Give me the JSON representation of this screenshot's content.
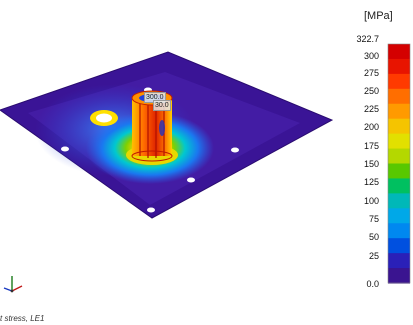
{
  "unit_label": "[MPa]",
  "colorbar": {
    "ticks": [
      "322.7",
      "300",
      "275",
      "250",
      "225",
      "200",
      "175",
      "150",
      "125",
      "100",
      "75",
      "50",
      "25",
      "0.0"
    ],
    "colors": [
      "#d40000",
      "#e81400",
      "#ff3a00",
      "#ff6e00",
      "#ff9a00",
      "#f5c400",
      "#e2e000",
      "#b4d800",
      "#58c800",
      "#00c060",
      "#00b8b8",
      "#00a8e8",
      "#0088f0",
      "#0050e0",
      "#2a20b8",
      "#3a1490"
    ]
  },
  "annotations": [
    "300.0",
    "30.0"
  ],
  "caption": "t stress, LE1",
  "triad_icon": "coordinate-triad-icon"
}
